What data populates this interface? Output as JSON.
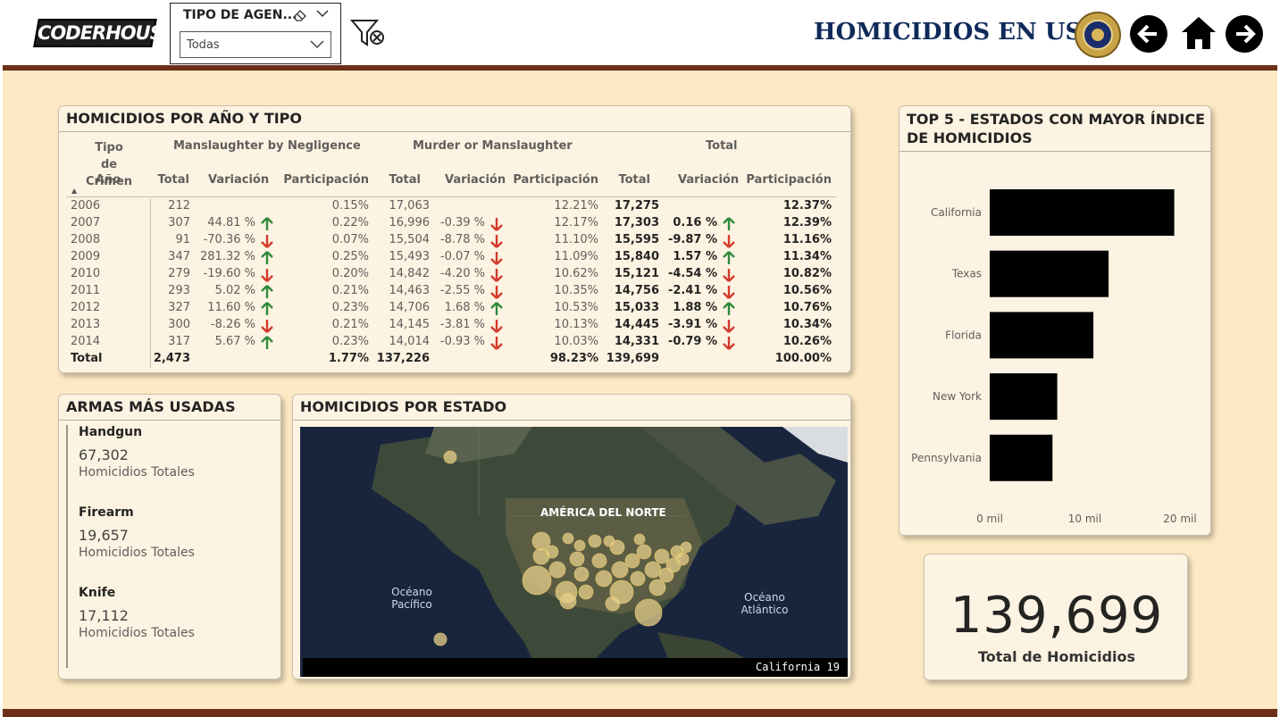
{
  "header": {
    "logo_text": "CODERHOUSE",
    "slicer_title": "TIPO DE AGEN...",
    "slicer_value": "Todas",
    "title": "HOMICIDIOS EN USA",
    "nav": {
      "back_icon": "arrow-left-icon",
      "home_icon": "home-icon",
      "next_icon": "arrow-right-icon"
    }
  },
  "table_card": {
    "title": "HOMICIDIOS POR AÑO Y TIPO",
    "col_tipo": "Tipo de Crimen",
    "col_year": "Año",
    "groups": [
      "Manslaughter by Negligence",
      "Murder or Manslaughter",
      "Total"
    ],
    "sub": [
      "Total",
      "Variación",
      "Participación"
    ],
    "rows": [
      {
        "year": "2006",
        "n_total": "212",
        "n_var": "",
        "n_dir": "",
        "n_part": "0.15%",
        "m_total": "17,063",
        "m_var": "",
        "m_dir": "",
        "m_part": "12.21%",
        "t_total": "17,275",
        "t_var": "",
        "t_dir": "",
        "t_part": "12.37%"
      },
      {
        "year": "2007",
        "n_total": "307",
        "n_var": "44.81 %",
        "n_dir": "up",
        "n_part": "0.22%",
        "m_total": "16,996",
        "m_var": "-0.39 %",
        "m_dir": "down",
        "m_part": "12.17%",
        "t_total": "17,303",
        "t_var": "0.16 %",
        "t_dir": "up",
        "t_part": "12.39%"
      },
      {
        "year": "2008",
        "n_total": "91",
        "n_var": "-70.36 %",
        "n_dir": "down",
        "n_part": "0.07%",
        "m_total": "15,504",
        "m_var": "-8.78 %",
        "m_dir": "down",
        "m_part": "11.10%",
        "t_total": "15,595",
        "t_var": "-9.87 %",
        "t_dir": "down",
        "t_part": "11.16%"
      },
      {
        "year": "2009",
        "n_total": "347",
        "n_var": "281.32 %",
        "n_dir": "up",
        "n_part": "0.25%",
        "m_total": "15,493",
        "m_var": "-0.07 %",
        "m_dir": "down",
        "m_part": "11.09%",
        "t_total": "15,840",
        "t_var": "1.57 %",
        "t_dir": "up",
        "t_part": "11.34%"
      },
      {
        "year": "2010",
        "n_total": "279",
        "n_var": "-19.60 %",
        "n_dir": "down",
        "n_part": "0.20%",
        "m_total": "14,842",
        "m_var": "-4.20 %",
        "m_dir": "down",
        "m_part": "10.62%",
        "t_total": "15,121",
        "t_var": "-4.54 %",
        "t_dir": "down",
        "t_part": "10.82%"
      },
      {
        "year": "2011",
        "n_total": "293",
        "n_var": "5.02 %",
        "n_dir": "up",
        "n_part": "0.21%",
        "m_total": "14,463",
        "m_var": "-2.55 %",
        "m_dir": "down",
        "m_part": "10.35%",
        "t_total": "14,756",
        "t_var": "-2.41 %",
        "t_dir": "down",
        "t_part": "10.56%"
      },
      {
        "year": "2012",
        "n_total": "327",
        "n_var": "11.60 %",
        "n_dir": "up",
        "n_part": "0.23%",
        "m_total": "14,706",
        "m_var": "1.68 %",
        "m_dir": "up",
        "m_part": "10.53%",
        "t_total": "15,033",
        "t_var": "1.88 %",
        "t_dir": "up",
        "t_part": "10.76%"
      },
      {
        "year": "2013",
        "n_total": "300",
        "n_var": "-8.26 %",
        "n_dir": "down",
        "n_part": "0.21%",
        "m_total": "14,145",
        "m_var": "-3.81 %",
        "m_dir": "down",
        "m_part": "10.13%",
        "t_total": "14,445",
        "t_var": "-3.91 %",
        "t_dir": "down",
        "t_part": "10.34%"
      },
      {
        "year": "2014",
        "n_total": "317",
        "n_var": "5.67 %",
        "n_dir": "up",
        "n_part": "0.23%",
        "m_total": "14,014",
        "m_var": "-0.93 %",
        "m_dir": "down",
        "m_part": "10.03%",
        "t_total": "14,331",
        "t_var": "-0.79 %",
        "t_dir": "down",
        "t_part": "10.26%"
      }
    ],
    "total_row": {
      "label": "Total",
      "n_total": "2,473",
      "n_part": "1.77%",
      "m_total": "137,226",
      "m_part": "98.23%",
      "t_total": "139,699",
      "t_part": "100.00%"
    }
  },
  "weapons_card": {
    "title": "ARMAS MÁS USADAS",
    "items": [
      {
        "name": "Handgun",
        "value": "67,302",
        "label": "Homicidios Totales"
      },
      {
        "name": "Firearm",
        "value": "19,657",
        "label": "Homicidios Totales"
      },
      {
        "name": "Knife",
        "value": "17,112",
        "label": "Homicidios Totales"
      }
    ]
  },
  "map_card": {
    "title": "HOMICIDIOS POR ESTADO",
    "label_na": "AMÉRICA DEL NORTE",
    "label_pac_1": "Océano",
    "label_pac_2": "Pacífico",
    "label_atl_1": "Océano",
    "label_atl_2": "Atlántico",
    "tooltip": "California 19"
  },
  "top5_card": {
    "title_1": "TOP 5 - ESTADOS CON MAYOR ÍNDICE",
    "title_2": "DE HOMICIDIOS"
  },
  "chart_data": {
    "type": "bar",
    "orientation": "horizontal",
    "title": "TOP 5 - ESTADOS CON MAYOR ÍNDICE DE HOMICIDIOS",
    "categories": [
      "California",
      "Texas",
      "Florida",
      "New York",
      "Pennsylvania"
    ],
    "values": [
      19400,
      12500,
      10900,
      7100,
      6600
    ],
    "xlim": [
      0,
      22000
    ],
    "tick_labels": [
      "0 mil",
      "10 mil",
      "20 mil"
    ],
    "tick_values": [
      0,
      10000,
      20000
    ],
    "bar_color": "#000000",
    "grid": false
  },
  "kpi": {
    "value": "139,699",
    "label": "Total de Homicidios"
  },
  "colors": {
    "background": "#fde9c4",
    "card": "#fdf3e2",
    "brand_bar": "#6b2f1a",
    "title_blue": "#0f2a5a",
    "up": "#2f8a3b",
    "down": "#d23b2c"
  }
}
